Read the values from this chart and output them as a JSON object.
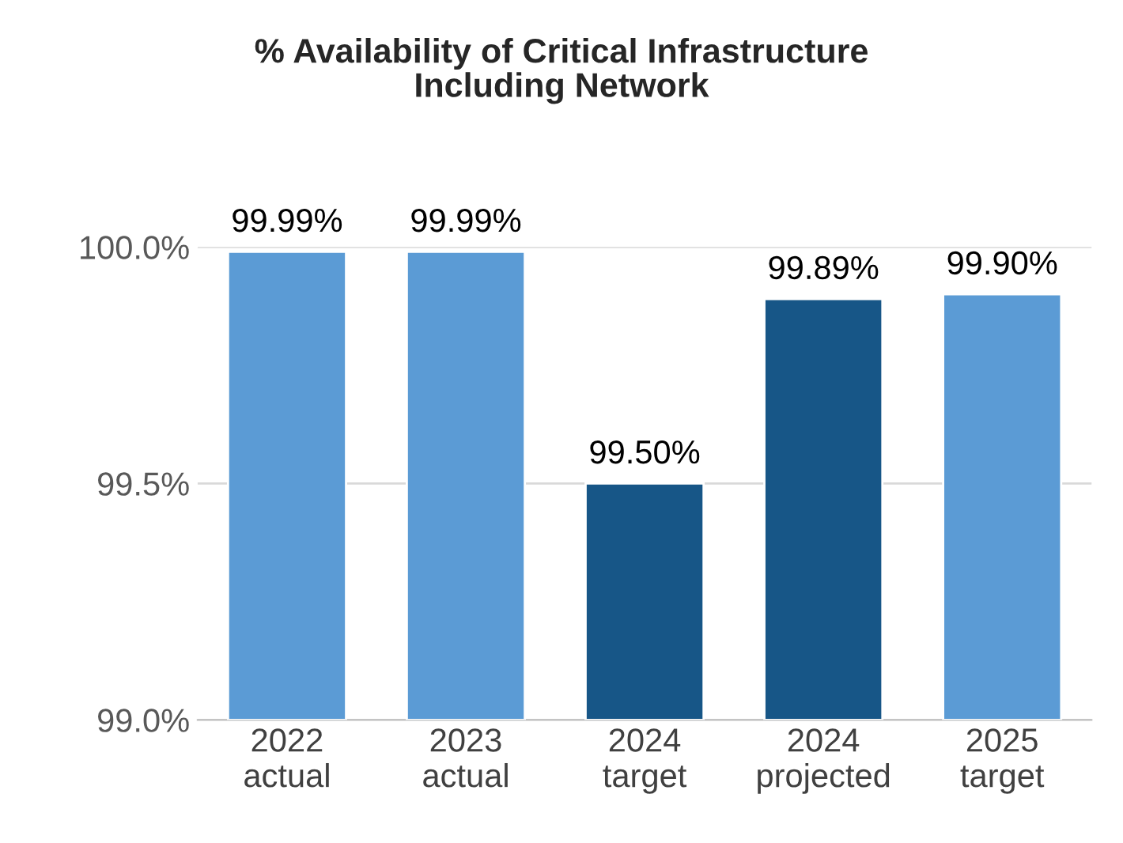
{
  "chart_data": {
    "type": "bar",
    "title": "% Availability of Critical Infrastructure\nIncluding Network",
    "categories": [
      "2022\nactual",
      "2023\nactual",
      "2024\ntarget",
      "2024\nprojected",
      "2025\ntarget"
    ],
    "values": [
      99.99,
      99.99,
      99.5,
      99.89,
      99.9
    ],
    "colors": [
      "#5b9bd5",
      "#5b9bd5",
      "#175687",
      "#175687",
      "#5b9bd5"
    ],
    "value_labels": [
      "99.99%",
      "99.99%",
      "99.50%",
      "99.89%",
      "99.90%"
    ],
    "ylim": [
      99.0,
      100.0
    ],
    "yticks": [
      {
        "value": 99.0,
        "label": "99.0%"
      },
      {
        "value": 99.5,
        "label": "99.5%"
      },
      {
        "value": 100.0,
        "label": "100.0%"
      }
    ],
    "grid": "y",
    "legend": false
  }
}
